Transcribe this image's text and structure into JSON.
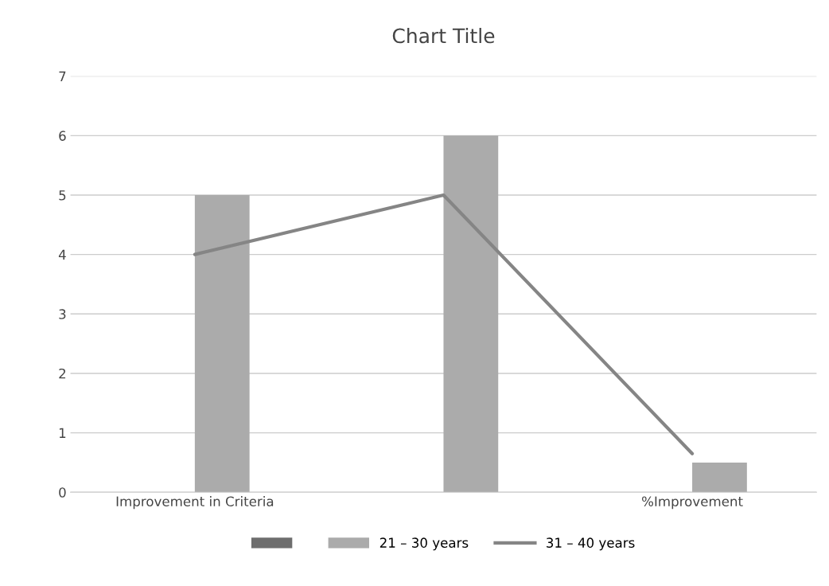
{
  "chart_data": {
    "type": "bar",
    "title": "Chart Title",
    "categories": [
      "Improvement in Criteria",
      null,
      "%Improvement"
    ],
    "series": [
      {
        "color": "#6e6e6e",
        "values": [
          null,
          null,
          null
        ]
      },
      {
        "name": "21 – 30 years",
        "color": "#ababab",
        "values": [
          5,
          6,
          0.5
        ]
      },
      {
        "name": "31 – 40 years",
        "type": "line",
        "color": "#858585",
        "values": [
          4,
          5,
          0.65
        ]
      }
    ],
    "ylim": [
      0,
      7
    ],
    "yticks": [
      0,
      1,
      2,
      3,
      4,
      5,
      6,
      7
    ],
    "grid": "y",
    "legend": "bottom",
    "marker": "none",
    "line_style": "solid"
  }
}
